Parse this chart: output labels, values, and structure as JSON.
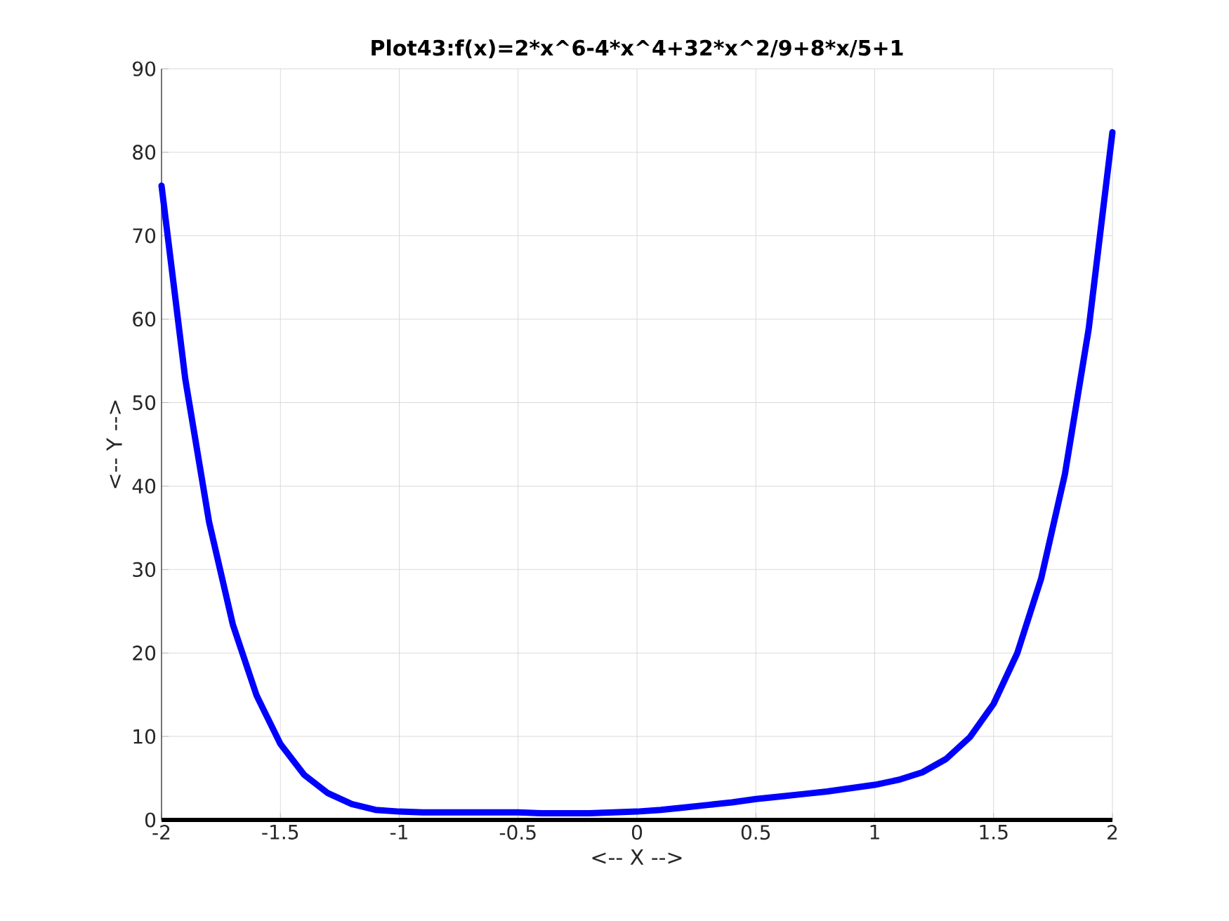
{
  "chart_data": {
    "type": "line",
    "title": "Plot43:f(x)=2*x^6-4*x^4+32*x^2/9+8*x/5+1",
    "xlabel": "<-- X -->",
    "ylabel": "<-- Y -->",
    "x": [
      -2,
      -1.9,
      -1.8,
      -1.7,
      -1.6,
      -1.5,
      -1.4,
      -1.3,
      -1.2,
      -1.1,
      -1,
      -0.9,
      -0.8,
      -0.7,
      -0.6,
      -0.5,
      -0.4,
      -0.3,
      -0.2,
      -0.1,
      0,
      0.1,
      0.2,
      0.3,
      0.4,
      0.5,
      0.6,
      0.7,
      0.8,
      0.9,
      1,
      1.1,
      1.2,
      1.3,
      1.4,
      1.5,
      1.6,
      1.7,
      1.8,
      1.9,
      2
    ],
    "series": [
      {
        "color": "#0000ff",
        "values": [
          76.0,
          52.8,
          35.7,
          23.4,
          14.9,
          9.1,
          5.4,
          3.2,
          1.9,
          1.2,
          1.0,
          0.9,
          0.9,
          0.9,
          0.9,
          0.9,
          0.8,
          0.8,
          0.8,
          0.9,
          1.0,
          1.2,
          1.5,
          1.8,
          2.1,
          2.5,
          2.8,
          3.1,
          3.4,
          3.8,
          4.2,
          4.8,
          5.7,
          7.3,
          9.9,
          13.9,
          20.0,
          28.9,
          41.4,
          58.8,
          82.4
        ]
      }
    ],
    "xlim": [
      -2,
      2
    ],
    "ylim": [
      0,
      90
    ],
    "xticks": [
      -2,
      -1.5,
      -1,
      -0.5,
      0,
      0.5,
      1,
      1.5,
      2
    ],
    "yticks": [
      0,
      10,
      20,
      30,
      40,
      50,
      60,
      70,
      80,
      90
    ],
    "grid": true,
    "line_style": "solid"
  }
}
